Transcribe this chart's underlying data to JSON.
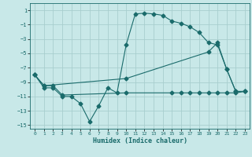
{
  "xlabel": "Humidex (Indice chaleur)",
  "bg_color": "#c8e8e8",
  "grid_color": "#a8cece",
  "line_color": "#1a6b6b",
  "xlim": [
    -0.5,
    23.5
  ],
  "ylim": [
    -15.5,
    2.0
  ],
  "yticks": [
    1,
    -1,
    -3,
    -5,
    -7,
    -9,
    -11,
    -13,
    -15
  ],
  "xticks": [
    0,
    1,
    2,
    3,
    4,
    5,
    6,
    7,
    8,
    9,
    10,
    11,
    12,
    13,
    14,
    15,
    16,
    17,
    18,
    19,
    20,
    21,
    22,
    23
  ],
  "line1_x": [
    0,
    1,
    2,
    3,
    4,
    5,
    6,
    7,
    8,
    9,
    10,
    11,
    12,
    13,
    14,
    15,
    16,
    17,
    18,
    19,
    20,
    21,
    22,
    23
  ],
  "line1_y": [
    -8,
    -9.8,
    -9.8,
    -11.0,
    -11.0,
    -12.0,
    -14.5,
    -12.3,
    -9.8,
    -10.5,
    -3.8,
    0.5,
    0.6,
    0.5,
    0.3,
    -0.5,
    -0.8,
    -1.3,
    -2.1,
    -3.5,
    -3.8,
    -7.2,
    -10.3,
    -10.3
  ],
  "line2_x": [
    0,
    1,
    2,
    3,
    10,
    15,
    16,
    17,
    18,
    19,
    20,
    21,
    22,
    23
  ],
  "line2_y": [
    -8,
    -9.5,
    -9.5,
    -10.8,
    -10.5,
    -10.5,
    -10.5,
    -10.5,
    -10.5,
    -10.5,
    -10.5,
    -10.5,
    -10.5,
    -10.3
  ],
  "line3_x": [
    0,
    1,
    10,
    19,
    20,
    21,
    22,
    23
  ],
  "line3_y": [
    -8,
    -9.5,
    -8.5,
    -4.8,
    -3.5,
    -7.2,
    -10.3,
    -10.3
  ]
}
